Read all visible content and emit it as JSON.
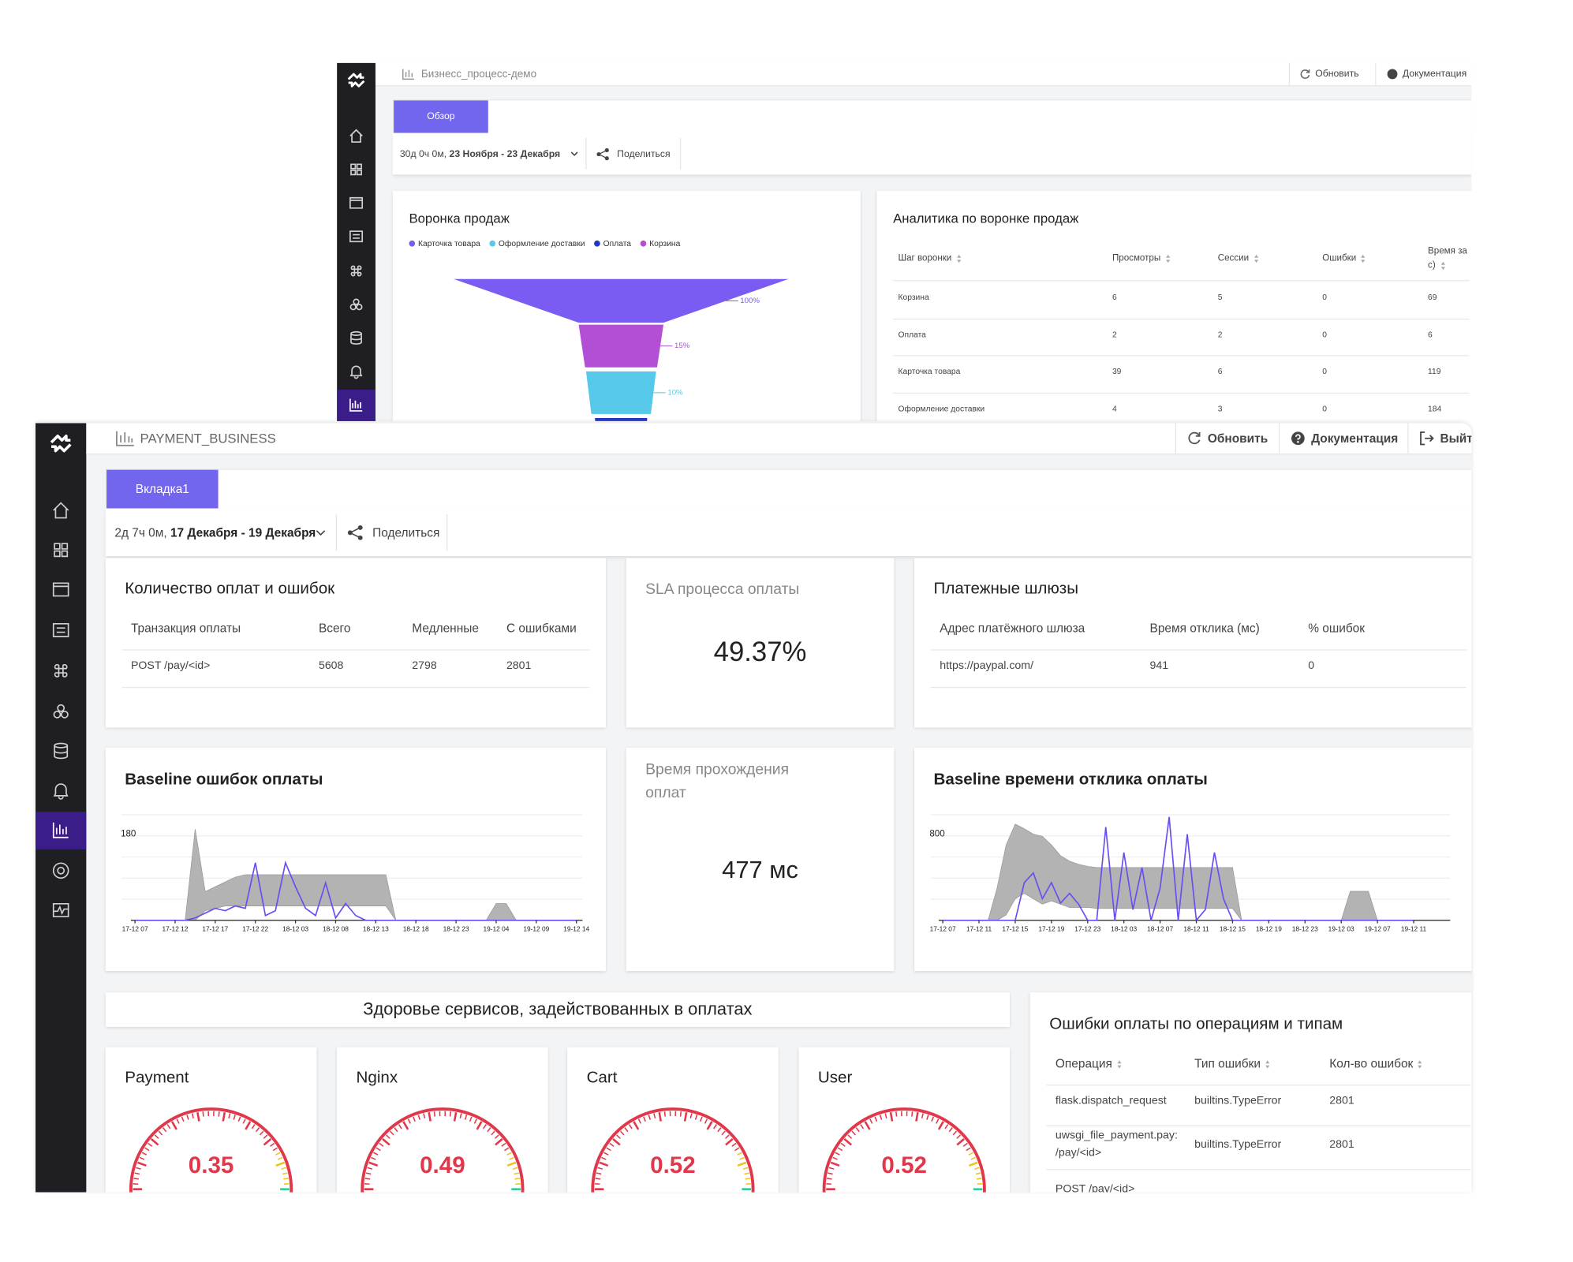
{
  "back": {
    "title": "Бизнесс_процесс-демо",
    "refresh": "Обновить",
    "docs": "Документация",
    "tab": "Обзор",
    "range_prefix": "30д 0ч 0м,",
    "range": "23 Ноября - 23 Декабря",
    "share": "Поделиться",
    "funnel": {
      "type": "funnel",
      "title": "Воронка продаж",
      "legend": [
        {
          "name": "Карточка товара",
          "color": "#7a5cf2"
        },
        {
          "name": "Оформление доставки",
          "color": "#56c8ea"
        },
        {
          "name": "Оплата",
          "color": "#2438c8"
        },
        {
          "name": "Корзина",
          "color": "#b34fd4"
        }
      ],
      "colors": [
        "#7a5cf2",
        "#b34fd4",
        "#56c8ea",
        "#2438c8"
      ],
      "values": [
        100,
        15,
        10,
        4
      ],
      "value_labels": [
        "100%",
        "15%",
        "10%",
        null
      ]
    },
    "analytics": {
      "title": "Аналитика по воронке продаж",
      "columns": [
        "Шаг воронки",
        "Просмотры",
        "Сессии",
        "Ошибки",
        "Время за с)"
      ],
      "rows": [
        [
          "Корзина",
          6,
          5,
          0,
          69
        ],
        [
          "Оплата",
          2,
          2,
          0,
          6
        ],
        [
          "Карточка товара",
          39,
          6,
          0,
          119
        ],
        [
          "Оформление доставки",
          4,
          3,
          0,
          184
        ]
      ]
    }
  },
  "front": {
    "title": "PAYMENT_BUSINESS",
    "refresh": "Обновить",
    "docs": "Документация",
    "logout": "Выйти",
    "tab": "Вкладка1",
    "range_prefix": "2д 7ч 0м,",
    "range": "17 Декабря - 19 Декабря",
    "share": "Поделиться",
    "payments": {
      "title": "Количество оплат и ошибок",
      "columns": [
        "Транзакция оплаты",
        "Всего",
        "Медленные",
        "С ошибками"
      ],
      "rows": [
        [
          "POST /pay/<id>",
          5608,
          2798,
          2801
        ]
      ]
    },
    "sla": {
      "title": "SLA процесса оплаты",
      "value": "49.37%"
    },
    "gateways": {
      "title": "Платежные шлюзы",
      "columns": [
        "Адрес платёжного шлюза",
        "Время отклика (мс)",
        "% ошибок"
      ],
      "rows": [
        [
          "https://paypal.com/",
          941,
          0
        ]
      ]
    },
    "errors_chart": {
      "type": "line",
      "title": "Baseline ошибок оплаты",
      "x": [
        "17-12 07",
        null,
        null,
        null,
        "17-12 12",
        null,
        null,
        null,
        "17-12 17",
        null,
        null,
        null,
        "17-12 22",
        null,
        null,
        null,
        "18-12 03",
        null,
        null,
        null,
        "18-12 08",
        null,
        null,
        null,
        "18-12 13",
        null,
        null,
        null,
        "18-12 18",
        null,
        null,
        null,
        "18-12 23",
        null,
        null,
        null,
        "19-12 04",
        null,
        null,
        null,
        "19-12 09",
        null,
        null,
        null,
        "19-12 14"
      ],
      "series": [
        {
          "color": "#6b4df0",
          "values": [
            0,
            0,
            0,
            0,
            0,
            0,
            5,
            15,
            25,
            20,
            30,
            25,
            120,
            10,
            20,
            120,
            70,
            25,
            10,
            78,
            5,
            35,
            10,
            0,
            0,
            0,
            0,
            0,
            0,
            0,
            0,
            0,
            0,
            0,
            0,
            0,
            0,
            0,
            0,
            0,
            0,
            0,
            0,
            0,
            0
          ]
        }
      ],
      "band": {
        "color": "#b3b3b3",
        "upper": [
          0,
          0,
          0,
          0,
          0,
          0,
          190,
          60,
          70,
          80,
          90,
          95,
          95,
          95,
          95,
          95,
          95,
          95,
          95,
          95,
          95,
          95,
          95,
          95,
          95,
          95,
          0,
          0,
          0,
          0,
          0,
          0,
          0,
          0,
          0,
          0,
          35,
          35,
          0,
          0,
          0,
          0,
          0,
          0,
          0
        ],
        "lower": [
          0,
          0,
          0,
          0,
          0,
          0,
          0,
          20,
          25,
          30,
          30,
          30,
          30,
          30,
          30,
          30,
          30,
          30,
          30,
          30,
          30,
          30,
          30,
          30,
          30,
          30,
          0,
          0,
          0,
          0,
          0,
          0,
          0,
          0,
          0,
          0,
          0,
          0,
          0,
          0,
          0,
          0,
          0,
          0,
          0
        ]
      },
      "ylim": [
        0,
        220
      ],
      "yticks": [
        180
      ]
    },
    "duration": {
      "title": "Время прохождения оплат",
      "value": "477 мс"
    },
    "latency_chart": {
      "type": "line",
      "title": "Baseline времени отклика оплаты",
      "x": [
        "17-12 07",
        null,
        null,
        null,
        "17-12 11",
        null,
        null,
        null,
        "17-12 15",
        null,
        null,
        null,
        "17-12 19",
        null,
        null,
        null,
        "17-12 23",
        null,
        null,
        null,
        "18-12 03",
        null,
        null,
        null,
        "18-12 07",
        null,
        null,
        null,
        "18-12 11",
        null,
        null,
        null,
        "18-12 15",
        null,
        null,
        null,
        "18-12 19",
        null,
        null,
        null,
        "18-12 23",
        null,
        null,
        null,
        "19-12 03",
        null,
        null,
        null,
        "19-12 07",
        null,
        null,
        null,
        "19-12 11"
      ],
      "series": [
        {
          "color": "#6b4df0",
          "values": [
            0,
            0,
            0,
            0,
            0,
            0,
            0,
            0,
            0,
            350,
            440,
            200,
            350,
            160,
            250,
            150,
            0,
            0,
            866,
            0,
            630,
            100,
            490,
            0,
            300,
            960,
            0,
            800,
            0,
            100,
            630,
            200,
            0,
            0,
            0,
            0,
            0,
            0,
            0,
            0,
            0,
            0,
            0,
            0,
            0,
            0,
            0,
            0,
            0,
            0,
            0,
            0,
            0
          ]
        }
      ],
      "band": {
        "color": "#b3b3b3",
        "upper": [
          0,
          0,
          0,
          0,
          0,
          0,
          300,
          700,
          894,
          850,
          800,
          780,
          700,
          600,
          550,
          520,
          500,
          490,
          490,
          490,
          490,
          490,
          490,
          490,
          490,
          490,
          490,
          490,
          490,
          490,
          490,
          490,
          490,
          0,
          0,
          0,
          0,
          0,
          0,
          0,
          0,
          0,
          0,
          0,
          0,
          270,
          270,
          270,
          0,
          0,
          0,
          0,
          0
        ],
        "lower": [
          0,
          0,
          0,
          0,
          0,
          0,
          0,
          50,
          200,
          250,
          200,
          150,
          180,
          150,
          120,
          120,
          120,
          110,
          110,
          110,
          110,
          110,
          110,
          110,
          110,
          110,
          110,
          110,
          110,
          110,
          110,
          110,
          110,
          0,
          0,
          0,
          0,
          0,
          0,
          0,
          0,
          0,
          0,
          0,
          0,
          0,
          0,
          0,
          0,
          0,
          0,
          0,
          0
        ]
      },
      "ylim": [
        0,
        980
      ],
      "yticks": [
        800
      ]
    },
    "services": {
      "title": "Здоровье сервисов, задействованных в оплатах",
      "items": [
        {
          "name": "Payment",
          "value": 0.35
        },
        {
          "name": "Nginx",
          "value": 0.49
        },
        {
          "name": "Cart",
          "value": 0.52
        },
        {
          "name": "User",
          "value": 0.52
        }
      ]
    },
    "op_errors": {
      "title": "Ошибки оплаты по операциям и типам",
      "columns": [
        "Операция",
        "Тип ошибки",
        "Кол-во ошибок"
      ],
      "rows": [
        [
          "flask.dispatch_request",
          "builtins.TypeError",
          2801
        ],
        [
          "uwsgi_file_payment.pay: /pay/<id>",
          "builtins.TypeError",
          2801
        ],
        [
          "POST /pay/<id>"
        ]
      ]
    }
  }
}
